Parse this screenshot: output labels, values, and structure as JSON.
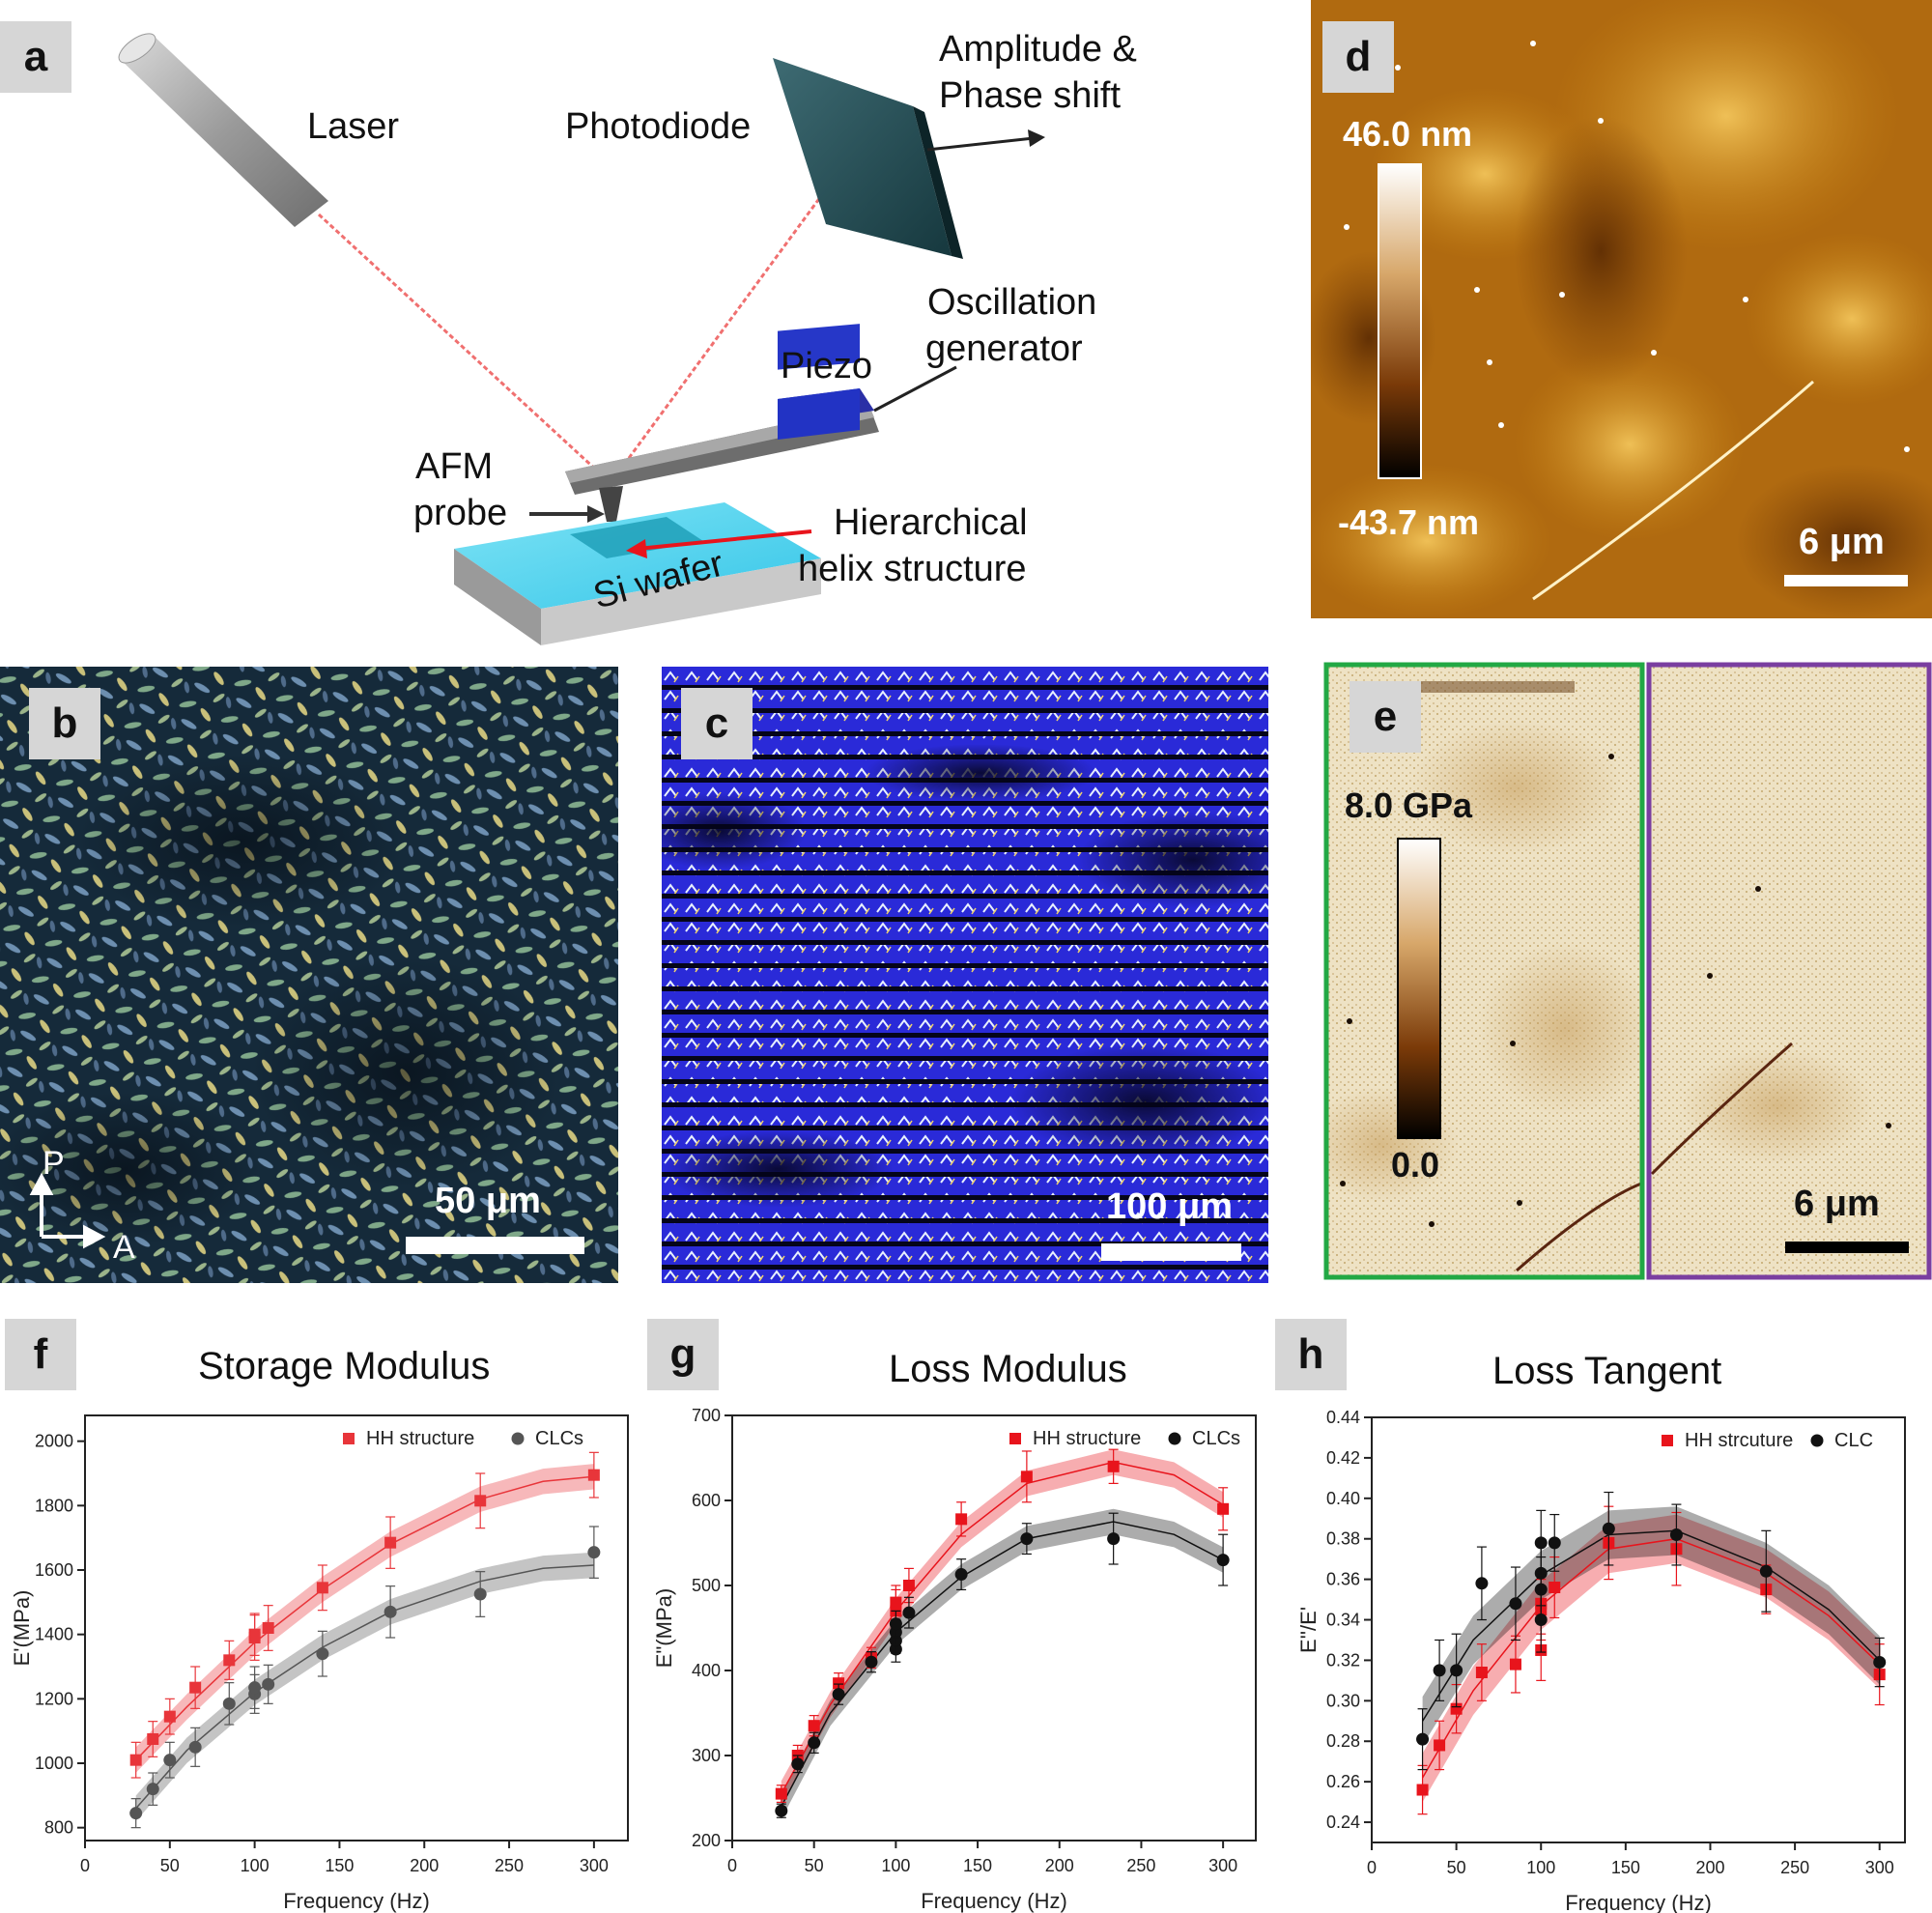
{
  "panels": {
    "a": {
      "letter": "a",
      "labels": {
        "laser": "Laser",
        "photodiode": "Photodiode",
        "amplitude_line1": "Amplitude &",
        "amplitude_line2": "Phase shift",
        "oscillation_line1": "Oscillation",
        "oscillation_line2": "generator",
        "piezo": "Piezo",
        "afm_line1": "AFM",
        "afm_line2": "probe",
        "helix_line1": "Hierarchical",
        "helix_line2": "helix structure",
        "wafer": "Si wafer"
      }
    },
    "b": {
      "letter": "b",
      "scale": "50 μm",
      "polarizer": "P",
      "analyzer": "A"
    },
    "c": {
      "letter": "c",
      "scale": "100 μm"
    },
    "d": {
      "letter": "d",
      "colorbar_max": "46.0 nm",
      "colorbar_min": "-43.7 nm",
      "scale": "6 μm"
    },
    "e": {
      "letter": "e",
      "colorbar_max": "8.0 GPa",
      "colorbar_min": "0.0",
      "scale": "6 μm",
      "frame_colors": [
        "#22a844",
        "#7a3ea0"
      ]
    }
  },
  "chart_data": [
    {
      "id": "f",
      "letter": "f",
      "type": "scatter",
      "title": "Storage Modulus",
      "xlabel": "Frequency (Hz)",
      "ylabel": "E'(MPa)",
      "xlim": [
        0,
        320
      ],
      "ylim": [
        760,
        2080
      ],
      "xticks": [
        0,
        50,
        100,
        150,
        200,
        250,
        300
      ],
      "yticks": [
        800,
        1000,
        1200,
        1400,
        1600,
        1800,
        2000
      ],
      "legend_position": "top-right",
      "series": [
        {
          "name": "HH structure",
          "color": "#e8353a",
          "marker": "square",
          "x": [
            30,
            40,
            50,
            65,
            85,
            100,
            100,
            108,
            140,
            180,
            233,
            300
          ],
          "y": [
            1010,
            1075,
            1145,
            1235,
            1320,
            1390,
            1400,
            1420,
            1545,
            1685,
            1815,
            1895
          ],
          "err": [
            55,
            55,
            55,
            65,
            60,
            70,
            65,
            70,
            70,
            80,
            85,
            70
          ],
          "fit": [
            [
              30,
              1010
            ],
            [
              60,
              1175
            ],
            [
              100,
              1375
            ],
            [
              140,
              1540
            ],
            [
              180,
              1680
            ],
            [
              233,
              1820
            ],
            [
              270,
              1875
            ],
            [
              300,
              1890
            ]
          ]
        },
        {
          "name": "CLCs",
          "color": "#555555",
          "marker": "circle",
          "x": [
            30,
            40,
            50,
            65,
            85,
            100,
            100,
            108,
            140,
            180,
            233,
            300
          ],
          "y": [
            845,
            920,
            1010,
            1050,
            1185,
            1215,
            1235,
            1245,
            1340,
            1470,
            1525,
            1655
          ],
          "err": [
            45,
            50,
            55,
            60,
            65,
            60,
            65,
            60,
            70,
            80,
            70,
            80
          ],
          "fit": [
            [
              30,
              860
            ],
            [
              60,
              1040
            ],
            [
              100,
              1220
            ],
            [
              140,
              1360
            ],
            [
              180,
              1470
            ],
            [
              233,
              1565
            ],
            [
              270,
              1605
            ],
            [
              300,
              1615
            ]
          ]
        }
      ]
    },
    {
      "id": "g",
      "letter": "g",
      "type": "scatter",
      "title": "Loss Modulus",
      "xlabel": "Frequency (Hz)",
      "ylabel": "E\"(MPa)",
      "xlim": [
        0,
        320
      ],
      "ylim": [
        200,
        700
      ],
      "xticks": [
        0,
        50,
        100,
        150,
        200,
        250,
        300
      ],
      "yticks": [
        200,
        300,
        400,
        500,
        600,
        700
      ],
      "legend_position": "top-right",
      "series": [
        {
          "name": "HH structure",
          "color": "#e8141c",
          "marker": "square",
          "x": [
            30,
            40,
            50,
            65,
            85,
            100,
            100,
            108,
            140,
            180,
            233,
            300
          ],
          "y": [
            255,
            300,
            335,
            385,
            415,
            470,
            480,
            500,
            578,
            628,
            640,
            590
          ],
          "err": [
            10,
            12,
            12,
            12,
            12,
            25,
            20,
            20,
            20,
            30,
            20,
            25
          ],
          "fit": [
            [
              30,
              255
            ],
            [
              60,
              360
            ],
            [
              100,
              470
            ],
            [
              140,
              560
            ],
            [
              180,
              620
            ],
            [
              233,
              645
            ],
            [
              270,
              630
            ],
            [
              300,
              595
            ]
          ]
        },
        {
          "name": "CLCs",
          "color": "#111111",
          "marker": "circle",
          "x": [
            30,
            40,
            50,
            65,
            85,
            100,
            100,
            100,
            100,
            108,
            140,
            180,
            233,
            300
          ],
          "y": [
            235,
            290,
            315,
            372,
            410,
            425,
            435,
            445,
            455,
            468,
            513,
            555,
            555,
            530
          ],
          "err": [
            8,
            10,
            12,
            12,
            12,
            15,
            15,
            15,
            15,
            18,
            18,
            18,
            30,
            30
          ],
          "fit": [
            [
              30,
              240
            ],
            [
              60,
              350
            ],
            [
              100,
              445
            ],
            [
              140,
              510
            ],
            [
              180,
              555
            ],
            [
              233,
              575
            ],
            [
              270,
              560
            ],
            [
              300,
              530
            ]
          ]
        }
      ]
    },
    {
      "id": "h",
      "letter": "h",
      "type": "scatter",
      "title": "Loss Tangent",
      "xlabel": "Frequency (Hz)",
      "ylabel": "E''/E'",
      "xlim": [
        0,
        315
      ],
      "ylim": [
        0.23,
        0.44
      ],
      "xticks": [
        0,
        50,
        100,
        150,
        200,
        250,
        300
      ],
      "yticks": [
        0.24,
        0.26,
        0.28,
        0.3,
        0.32,
        0.34,
        0.36,
        0.38,
        0.4,
        0.42,
        0.44
      ],
      "legend_position": "top-right",
      "series": [
        {
          "name": "HH strcuture",
          "color": "#e8141c",
          "marker": "square",
          "x": [
            30,
            40,
            50,
            65,
            85,
            100,
            100,
            100,
            108,
            140,
            180,
            233,
            300
          ],
          "y": [
            0.256,
            0.278,
            0.296,
            0.314,
            0.318,
            0.325,
            0.345,
            0.348,
            0.356,
            0.378,
            0.375,
            0.355,
            0.313
          ],
          "err": [
            0.012,
            0.012,
            0.012,
            0.014,
            0.014,
            0.015,
            0.015,
            0.015,
            0.015,
            0.018,
            0.018,
            0.012,
            0.015
          ],
          "fit": [
            [
              30,
              0.262
            ],
            [
              60,
              0.305
            ],
            [
              100,
              0.347
            ],
            [
              140,
              0.375
            ],
            [
              180,
              0.38
            ],
            [
              233,
              0.363
            ],
            [
              270,
              0.342
            ],
            [
              300,
              0.318
            ]
          ]
        },
        {
          "name": "CLC",
          "color": "#111111",
          "marker": "circle",
          "x": [
            30,
            40,
            50,
            65,
            85,
            100,
            100,
            100,
            100,
            108,
            140,
            180,
            233,
            300
          ],
          "y": [
            0.281,
            0.315,
            0.315,
            0.358,
            0.348,
            0.34,
            0.355,
            0.363,
            0.378,
            0.378,
            0.385,
            0.382,
            0.364,
            0.319
          ],
          "err": [
            0.015,
            0.015,
            0.018,
            0.018,
            0.018,
            0.016,
            0.016,
            0.016,
            0.016,
            0.014,
            0.018,
            0.015,
            0.02,
            0.012
          ],
          "fit": [
            [
              30,
              0.29
            ],
            [
              60,
              0.33
            ],
            [
              100,
              0.362
            ],
            [
              140,
              0.382
            ],
            [
              180,
              0.384
            ],
            [
              233,
              0.366
            ],
            [
              270,
              0.345
            ],
            [
              300,
              0.32
            ]
          ]
        }
      ]
    }
  ]
}
